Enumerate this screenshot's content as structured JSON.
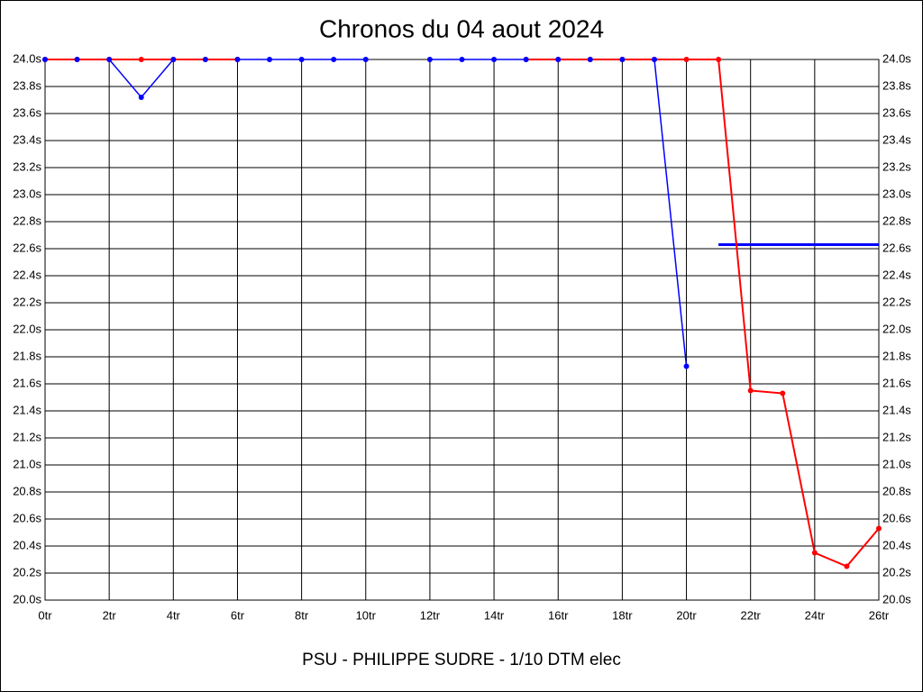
{
  "chart_data": {
    "type": "line",
    "title": "Chronos du 04 aout 2024",
    "x_label": "PSU - PHILIPPE SUDRE - 1/10 DTM elec",
    "xlim": [
      0,
      26
    ],
    "xticks": [
      {
        "value": 0,
        "label": "0tr"
      },
      {
        "value": 2,
        "label": "2tr"
      },
      {
        "value": 4,
        "label": "4tr"
      },
      {
        "value": 6,
        "label": "6tr"
      },
      {
        "value": 8,
        "label": "8tr"
      },
      {
        "value": 10,
        "label": "10tr"
      },
      {
        "value": 12,
        "label": "12tr"
      },
      {
        "value": 14,
        "label": "14tr"
      },
      {
        "value": 16,
        "label": "16tr"
      },
      {
        "value": 18,
        "label": "18tr"
      },
      {
        "value": 20,
        "label": "20tr"
      },
      {
        "value": 22,
        "label": "22tr"
      },
      {
        "value": 24,
        "label": "24tr"
      },
      {
        "value": 26,
        "label": "26tr"
      }
    ],
    "ylim": [
      20.0,
      24.0
    ],
    "yticks": [
      {
        "value": 20.0,
        "label": "20.0s"
      },
      {
        "value": 20.2,
        "label": "20.2s"
      },
      {
        "value": 20.4,
        "label": "20.4s"
      },
      {
        "value": 20.6,
        "label": "20.6s"
      },
      {
        "value": 20.8,
        "label": "20.8s"
      },
      {
        "value": 21.0,
        "label": "21.0s"
      },
      {
        "value": 21.2,
        "label": "21.2s"
      },
      {
        "value": 21.4,
        "label": "21.4s"
      },
      {
        "value": 21.6,
        "label": "21.6s"
      },
      {
        "value": 21.8,
        "label": "21.8s"
      },
      {
        "value": 22.0,
        "label": "22.0s"
      },
      {
        "value": 22.2,
        "label": "22.2s"
      },
      {
        "value": 22.4,
        "label": "22.4s"
      },
      {
        "value": 22.6,
        "label": "22.6s"
      },
      {
        "value": 22.8,
        "label": "22.8s"
      },
      {
        "value": 23.0,
        "label": "23.0s"
      },
      {
        "value": 23.2,
        "label": "23.2s"
      },
      {
        "value": 23.4,
        "label": "23.4s"
      },
      {
        "value": 23.6,
        "label": "23.6s"
      },
      {
        "value": 23.8,
        "label": "23.8s"
      },
      {
        "value": 24.0,
        "label": "24.0s"
      }
    ],
    "grid": true,
    "series": [
      {
        "color": "#0000ff",
        "markers": true,
        "x": [
          0,
          1,
          2,
          3,
          4,
          5,
          6,
          7,
          8,
          9,
          10,
          11,
          12,
          13,
          14,
          15,
          16,
          17,
          18,
          19,
          20
        ],
        "values": [
          24.0,
          24.0,
          24.0,
          23.72,
          24.0,
          24.0,
          24.0,
          24.0,
          24.0,
          24.0,
          24.0,
          null,
          24.0,
          24.0,
          24.0,
          24.0,
          24.0,
          24.0,
          24.0,
          24.0,
          21.73
        ]
      },
      {
        "color": "#ff0000",
        "markers": true,
        "x": [
          0,
          1,
          2,
          3,
          4,
          5,
          6,
          7,
          15,
          16,
          17,
          18,
          19,
          20,
          21,
          22,
          23,
          24,
          25,
          26
        ],
        "values": [
          24.0,
          24.0,
          24.0,
          24.0,
          24.0,
          24.0,
          24.0,
          null,
          24.0,
          24.0,
          24.0,
          24.0,
          24.0,
          24.0,
          24.0,
          21.55,
          21.53,
          20.35,
          20.25,
          20.53
        ]
      },
      {
        "color": "#0000ff",
        "markers": false,
        "x": [
          21,
          26
        ],
        "values": [
          22.63,
          22.63
        ]
      }
    ]
  }
}
